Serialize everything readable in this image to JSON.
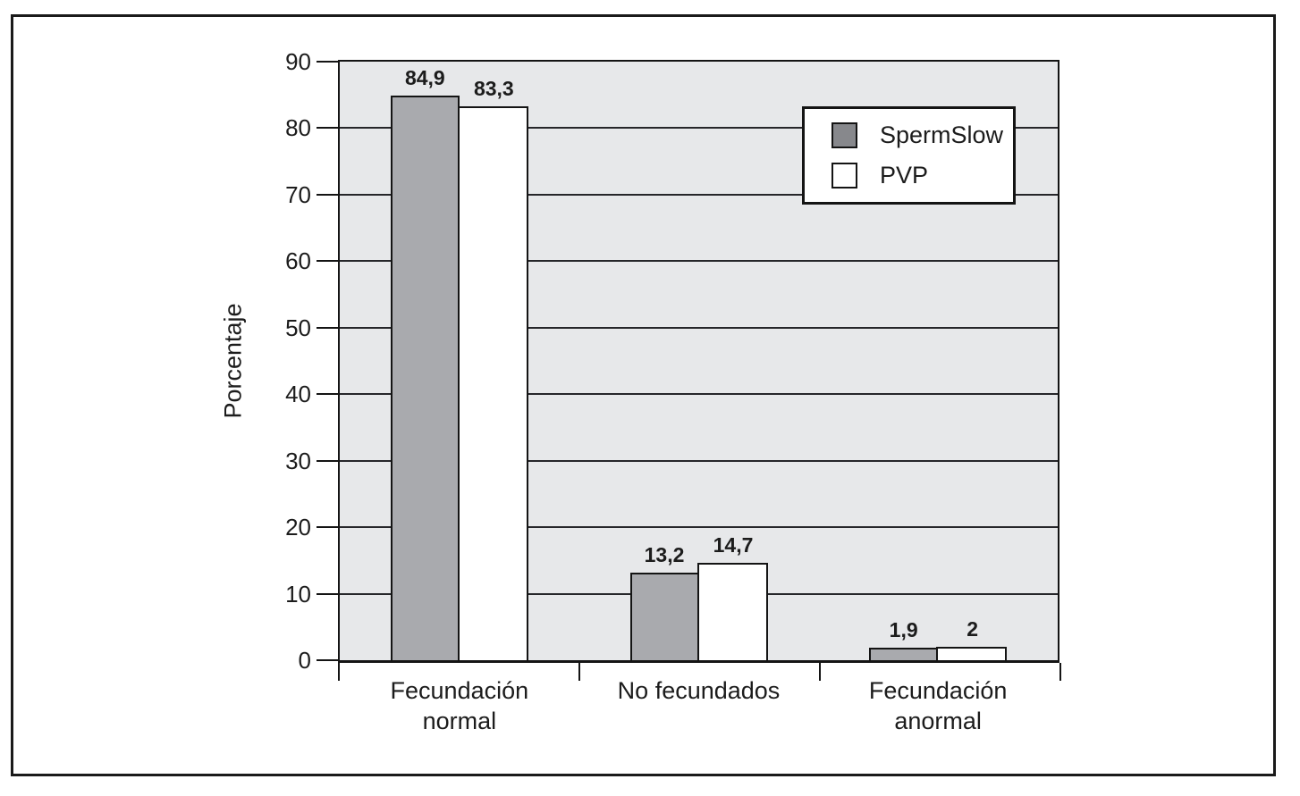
{
  "chart_data": {
    "type": "bar",
    "title": "",
    "xlabel": "",
    "ylabel": "Porcentaje",
    "ylim": [
      0,
      90
    ],
    "y_ticks": [
      0,
      10,
      20,
      30,
      40,
      50,
      60,
      70,
      80,
      90
    ],
    "grid": "horizontal",
    "plot_background": "#e7e8ea",
    "legend_position": "upper-right-inside",
    "categories": [
      [
        "Fecundación",
        "normal"
      ],
      [
        "No fecundados"
      ],
      [
        "Fecundación",
        "anormal"
      ]
    ],
    "series": [
      {
        "name": "SpermSlow",
        "values": [
          84.9,
          13.2,
          1.9
        ],
        "value_labels": [
          "84,9",
          "13,2",
          "1,9"
        ],
        "bar_color": "#a9aaae",
        "legend_color": "#87888c"
      },
      {
        "name": "PVP",
        "values": [
          83.3,
          14.7,
          2
        ],
        "value_labels": [
          "83,3",
          "14,7",
          "2"
        ],
        "bar_color": "#ffffff",
        "legend_color": "#ffffff"
      }
    ]
  },
  "colors": {
    "axis_line": "#141414",
    "frame_border": "#1a1a1a",
    "gridline": "#26262a"
  }
}
